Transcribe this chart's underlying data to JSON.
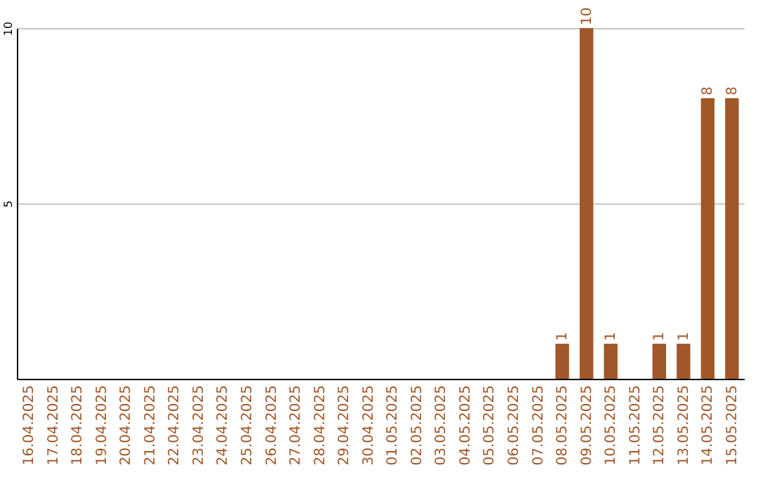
{
  "chart_data": {
    "type": "bar",
    "categories": [
      "16.04.2025",
      "17.04.2025",
      "18.04.2025",
      "19.04.2025",
      "20.04.2025",
      "21.04.2025",
      "22.04.2025",
      "23.04.2025",
      "24.04.2025",
      "25.04.2025",
      "26.04.2025",
      "27.04.2025",
      "28.04.2025",
      "29.04.2025",
      "30.04.2025",
      "01.05.2025",
      "02.05.2025",
      "03.05.2025",
      "04.05.2025",
      "05.05.2025",
      "06.05.2025",
      "07.05.2025",
      "08.05.2025",
      "09.05.2025",
      "10.05.2025",
      "11.05.2025",
      "12.05.2025",
      "13.05.2025",
      "14.05.2025",
      "15.05.2025"
    ],
    "values": [
      0,
      0,
      0,
      0,
      0,
      0,
      0,
      0,
      0,
      0,
      0,
      0,
      0,
      0,
      0,
      0,
      0,
      0,
      0,
      0,
      0,
      0,
      1,
      10,
      1,
      0,
      1,
      1,
      8,
      8
    ],
    "value_labels": [
      null,
      null,
      null,
      null,
      null,
      null,
      null,
      null,
      null,
      null,
      null,
      null,
      null,
      null,
      null,
      null,
      null,
      null,
      null,
      null,
      null,
      null,
      "1",
      "10",
      "1",
      null,
      "1",
      "1",
      "8",
      "8"
    ],
    "color": "#a0582a",
    "ylim": [
      0,
      10
    ],
    "yticks": [
      5,
      10
    ],
    "grid": "y"
  }
}
